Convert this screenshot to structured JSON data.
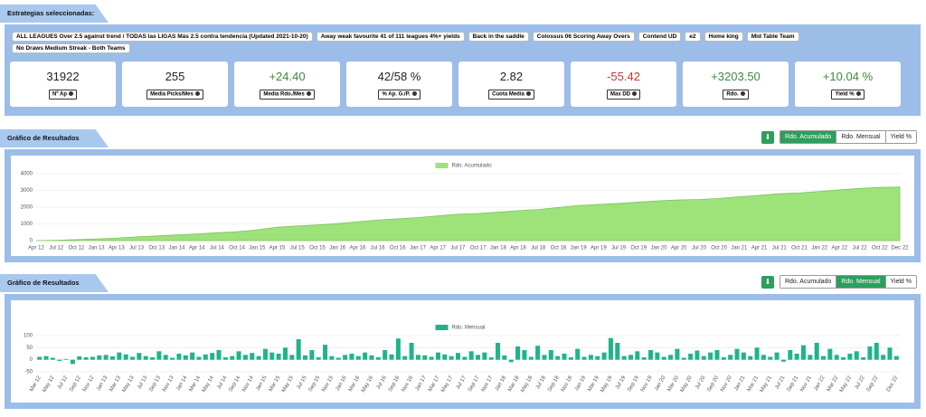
{
  "header": {
    "title": "Estrategias seleccionadas:"
  },
  "strategies": [
    "ALL LEAGUES Over 2.5 against trend / TODAS las LIGAS Más 2.5 contra tendencia (Updated 2021-10-20)",
    "Away weak favourite 41 of 111 leagues 4%+ yields",
    "Back in the saddle",
    "Colossus 06 Scoring Away Overs",
    "Contend UD",
    "e2",
    "Home king",
    "Mid Table Team",
    "No Draws Medium Streak - Both Teams"
  ],
  "stats": [
    {
      "value": "31922",
      "label": "Nº Ap",
      "color": "#222222"
    },
    {
      "value": "255",
      "label": "Media Picks/Mes",
      "color": "#222222"
    },
    {
      "value": "+24.40",
      "label": "Media Rdo./Mes",
      "color": "#3c8a3c"
    },
    {
      "value": "42/58 %",
      "label": "% Ap. G./P.",
      "color": "#222222"
    },
    {
      "value": "2.82",
      "label": "Cuota Media",
      "color": "#222222"
    },
    {
      "value": "-55.42",
      "label": "Max DD",
      "color": "#c0392b"
    },
    {
      "value": "+3203.50",
      "label": "Rdo.",
      "color": "#3c8a3c"
    },
    {
      "value": "+10.04 %",
      "label": "Yield %",
      "color": "#3c8a3c"
    }
  ],
  "chart_data": [
    {
      "type": "area",
      "title": "Gráfico de Resultados",
      "buttons": [
        "Rdo. Acumulado",
        "Rdo. Mensual",
        "Yield %"
      ],
      "active": 0,
      "categories": [
        "Apr 12",
        "Jul 12",
        "Oct 12",
        "Jan 13",
        "Apr 13",
        "Jul 13",
        "Oct 13",
        "Jan 14",
        "Apr 14",
        "Jul 14",
        "Oct 14",
        "Jan 15",
        "Apr 15",
        "Jul 15",
        "Oct 15",
        "Jan 16",
        "Apr 16",
        "Jul 16",
        "Oct 16",
        "Jan 17",
        "Apr 17",
        "Jul 17",
        "Oct 17",
        "Jan 18",
        "Apr 18",
        "Jul 18",
        "Oct 18",
        "Jan 19",
        "Apr 19",
        "Jul 19",
        "Oct 19",
        "Jan 20",
        "Apr 20",
        "Jul 20",
        "Oct 20",
        "Jan 21",
        "Apr 21",
        "Jul 21",
        "Oct 21",
        "Jan 22",
        "Apr 22",
        "Jul 22",
        "Oct 22",
        "Dec 22"
      ],
      "series": [
        {
          "name": "Rdo. Acumulado",
          "color": "#9ee27a",
          "values": [
            0,
            20,
            60,
            100,
            150,
            220,
            280,
            340,
            400,
            470,
            530,
            640,
            800,
            880,
            940,
            1010,
            1130,
            1230,
            1300,
            1380,
            1480,
            1580,
            1620,
            1700,
            1790,
            1860,
            1980,
            2100,
            2160,
            2220,
            2300,
            2380,
            2430,
            2460,
            2520,
            2620,
            2710,
            2800,
            2850,
            2940,
            3030,
            3120,
            3180,
            3203.5
          ]
        }
      ],
      "ylim": [
        0,
        4000
      ],
      "yticks": [
        0,
        1000,
        2000,
        3000,
        4000
      ],
      "grid": true,
      "legend": "top"
    },
    {
      "type": "bar",
      "title": "Gráfico de Resultados",
      "buttons": [
        "Rdo. Acumulado",
        "Rdo. Mensual",
        "Yield %"
      ],
      "active": 1,
      "categories": [
        "Mar 12",
        null,
        "May 12",
        null,
        "Jul 12",
        null,
        "Sep 12",
        null,
        "Nov 12",
        null,
        "Jan 13",
        null,
        "Mar 13",
        null,
        "May 13",
        null,
        "Jul 13",
        null,
        "Sep 13",
        null,
        "Nov 13",
        null,
        "Jan 14",
        null,
        "Mar 14",
        null,
        "May 14",
        null,
        "Jul 14",
        null,
        "Sep 14",
        null,
        "Nov 14",
        null,
        "Jan 15",
        null,
        "Mar 15",
        null,
        "May 15",
        null,
        "Jul 15",
        null,
        "Sep 15",
        null,
        "Nov 15",
        null,
        "Jan 16",
        null,
        "Mar 16",
        null,
        "May 16",
        null,
        "Jul 16",
        null,
        "Sep 16",
        null,
        "Nov 16",
        null,
        "Jan 17",
        null,
        "Mar 17",
        null,
        "May 17",
        null,
        "Jul 17",
        null,
        "Sep 17",
        null,
        "Nov 17",
        null,
        "Jan 18",
        null,
        "Mar 18",
        null,
        "May 18",
        null,
        "Jul 18",
        null,
        "Sep 18",
        null,
        "Nov 18",
        null,
        "Jan 19",
        null,
        "Mar 19",
        null,
        "May 19",
        null,
        "Jul 19",
        null,
        "Sep 19",
        null,
        "Nov 19",
        null,
        "Jan 20",
        null,
        "Mar 20",
        null,
        "May 20",
        null,
        "Jul 20",
        null,
        "Sep 20",
        null,
        "Nov 20",
        null,
        "Jan 21",
        null,
        "Mar 21",
        null,
        "May 21",
        null,
        "Jul 21",
        null,
        "Sep 21",
        null,
        "Nov 21",
        null,
        "Jan 22",
        null,
        "Mar 22",
        null,
        "May 22",
        null,
        "Jul 22",
        null,
        "Sep 22",
        null,
        null,
        "Dec 22"
      ],
      "series": [
        {
          "name": "Rdo. Mensual",
          "color": "#1fb48a",
          "values": [
            12,
            15,
            8,
            -5,
            3,
            -18,
            14,
            10,
            12,
            18,
            20,
            14,
            30,
            22,
            12,
            28,
            15,
            10,
            35,
            20,
            8,
            25,
            18,
            30,
            12,
            22,
            28,
            40,
            10,
            15,
            35,
            20,
            28,
            15,
            45,
            30,
            25,
            50,
            20,
            85,
            18,
            40,
            10,
            62,
            15,
            8,
            20,
            25,
            15,
            30,
            18,
            10,
            40,
            22,
            88,
            15,
            70,
            20,
            18,
            12,
            30,
            22,
            15,
            28,
            12,
            35,
            20,
            30,
            10,
            70,
            18,
            -10,
            55,
            40,
            12,
            58,
            20,
            40,
            15,
            25,
            10,
            45,
            12,
            20,
            15,
            30,
            90,
            70,
            15,
            20,
            35,
            10,
            40,
            30,
            12,
            20,
            45,
            8,
            25,
            38,
            15,
            30,
            40,
            10,
            20,
            45,
            30,
            15,
            50,
            20,
            12,
            30,
            -8,
            40,
            25,
            60,
            20,
            70,
            15,
            45,
            20,
            10,
            25,
            35,
            10,
            55,
            70,
            20,
            50,
            15
          ]
        }
      ],
      "ylim": [
        -50,
        100
      ],
      "yticks": [
        -50,
        0,
        50,
        100
      ],
      "grid": true,
      "legend": "top"
    }
  ]
}
